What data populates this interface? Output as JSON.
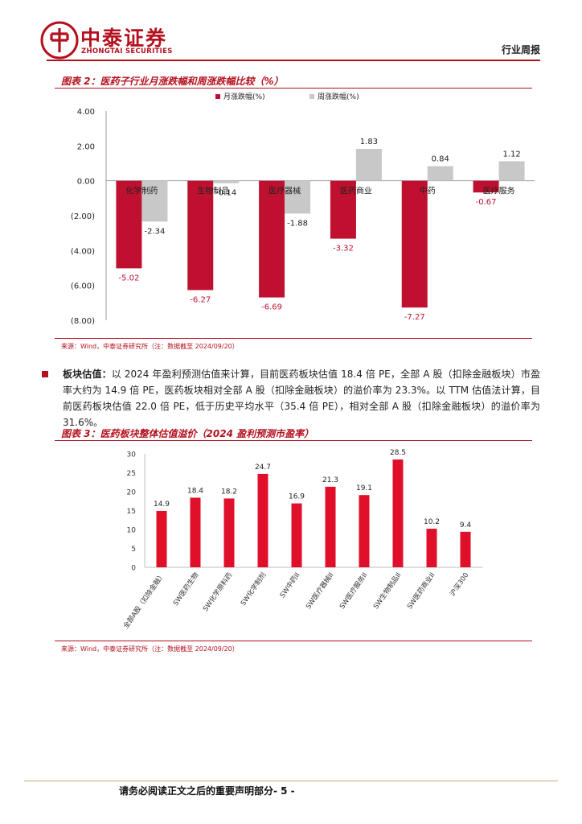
{
  "header": {
    "brand_cn": "中泰证券",
    "brand_en": "ZHONGTAI SECURITIES",
    "report_type": "行业周报"
  },
  "figure2": {
    "title": "图表 2：医药子行业月涨跌幅和周涨跌幅比较（%）",
    "source": "来源：Wind，中泰证券研究所（注：数据截至 2024/09/20）"
  },
  "paragraph": {
    "lead": "板块估值：",
    "text": "以 2024 年盈利预测估值来计算，目前医药板块估值 18.4 倍 PE，全部 A 股（扣除金融板块）市盈率大约为 14.9 倍 PE，医药板块相对全部 A 股（扣除金融板块）的溢价率为 23.3%。以 TTM 估值法计算，目前医药板块估值 22.0 倍 PE，低于历史平均水平（35.4 倍 PE），相对全部 A 股（扣除金融板块）的溢价率为 31.6%。"
  },
  "figure3": {
    "title": "图表 3：医药板块整体估值溢价（2024 盈利预测市盈率）",
    "source": "来源：Wind，中泰证券研究所（注：数据截至 2024/09/20）"
  },
  "footer": {
    "text": "请务必阅读正文之后的重要声明部分- 5 -"
  },
  "colors": {
    "brand": "#b4101e",
    "monthly": "#c0102f",
    "weekly": "#c8c8c8",
    "bar": "#e0102a"
  },
  "chart_data": [
    {
      "type": "bar",
      "categories": [
        "化学制药",
        "生物制品",
        "医疗器械",
        "医药商业",
        "中药",
        "医疗服务"
      ],
      "series": [
        {
          "name": "月涨跌幅(%)",
          "values": [
            -5.02,
            -6.27,
            -6.69,
            -3.32,
            -7.27,
            -0.67
          ]
        },
        {
          "name": "周涨跌幅(%)",
          "values": [
            -2.34,
            -0.14,
            -1.88,
            1.83,
            0.84,
            1.12
          ]
        }
      ],
      "yticks": [
        "4.00",
        "2.00",
        "0.00",
        "(2.00)",
        "(4.00)",
        "(6.00)",
        "(8.00)"
      ],
      "ylim": [
        -8,
        4
      ],
      "legend": "top-center",
      "grid": false
    },
    {
      "type": "bar",
      "categories": [
        "全部A股（扣除金融）",
        "SW医药生物",
        "SW化学原料药",
        "SW化学制剂",
        "SW中药II",
        "SW医疗器械II",
        "SW医疗服务II",
        "SW生物制品II",
        "SW医药商业II",
        "沪深300"
      ],
      "values": [
        14.9,
        18.4,
        18.2,
        24.7,
        16.9,
        21.3,
        19.1,
        28.5,
        10.2,
        9.4
      ],
      "yticks": [
        "30",
        "25",
        "20",
        "15",
        "10",
        "5",
        "0"
      ],
      "ylim": [
        0,
        30
      ],
      "grid": false
    }
  ]
}
